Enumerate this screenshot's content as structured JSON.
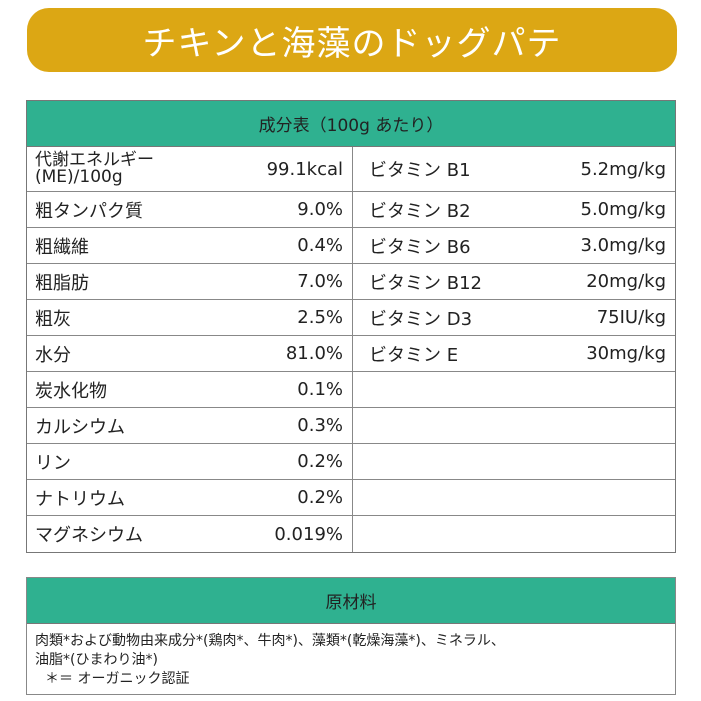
{
  "title": "チキンと海藻のドッグパテ",
  "nutrition": {
    "header": "成分表（100g あたり）",
    "rows": [
      {
        "left_label_1": "代謝エネルギー",
        "left_label_2": "(ME)/100g",
        "left_value": "99.1kcal",
        "right_label": "ビタミン B1",
        "right_value": "5.2mg/kg"
      },
      {
        "left_label": "粗タンパク質",
        "left_value": "9.0%",
        "right_label": "ビタミン B2",
        "right_value": "5.0mg/kg"
      },
      {
        "left_label": "粗繊維",
        "left_value": "0.4%",
        "right_label": "ビタミン B6",
        "right_value": "3.0mg/kg"
      },
      {
        "left_label": "粗脂肪",
        "left_value": "7.0%",
        "right_label": "ビタミン B12",
        "right_value": "20mg/kg"
      },
      {
        "left_label": "粗灰",
        "left_value": "2.5%",
        "right_label": "ビタミン D3",
        "right_value": "75IU/kg"
      },
      {
        "left_label": "水分",
        "left_value": "81.0%",
        "right_label": "ビタミン E",
        "right_value": "30mg/kg"
      },
      {
        "left_label": "炭水化物",
        "left_value": "0.1%"
      },
      {
        "left_label": "カルシウム",
        "left_value": "0.3%"
      },
      {
        "left_label": "リン",
        "left_value": "0.2%"
      },
      {
        "left_label": "ナトリウム",
        "left_value": "0.2%"
      },
      {
        "left_label": "マグネシウム",
        "left_value": "0.019%"
      }
    ]
  },
  "ingredients": {
    "header": "原材料",
    "line1": "肉類*および動物由来成分*(鶏肉*、牛肉*)、藻類*(乾燥海藻*)、ミネラル、",
    "line2": "油脂*(ひまわり油*)",
    "note": "＊＝ オーガニック認証"
  },
  "colors": {
    "banner": "#dca714",
    "header": "#2fb190"
  }
}
